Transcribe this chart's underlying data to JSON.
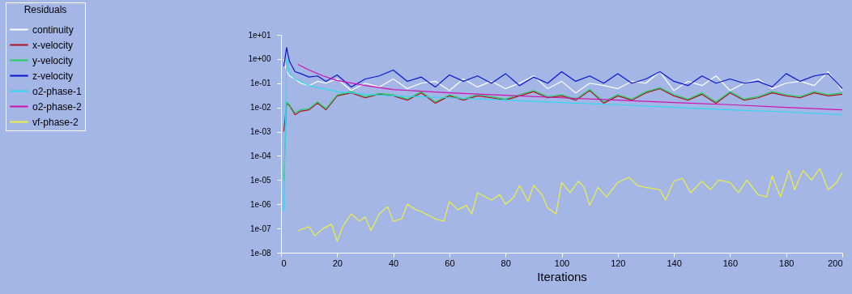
{
  "chart_data": {
    "type": "line",
    "xlabel": "Iterations",
    "legend_title": "Residuals",
    "legend": "top left",
    "log": "y",
    "grid": false,
    "marker": "none",
    "line_style": "solid",
    "xlim": [
      0,
      200
    ],
    "xticks": [
      0,
      20,
      40,
      60,
      80,
      100,
      120,
      140,
      160,
      180,
      200
    ],
    "ylim": [
      1e-08,
      10
    ],
    "yticks": [
      {
        "value": 1e-08,
        "label": "1e-08"
      },
      {
        "value": 1e-07,
        "label": "1e-07"
      },
      {
        "value": 1e-06,
        "label": "1e-06"
      },
      {
        "value": 1e-05,
        "label": "1e-05"
      },
      {
        "value": 0.0001,
        "label": "1e-04"
      },
      {
        "value": 0.001,
        "label": "1e-03"
      },
      {
        "value": 0.01,
        "label": "1e-02"
      },
      {
        "value": 0.1,
        "label": "1e-01"
      },
      {
        "value": 1,
        "label": "1e+00"
      },
      {
        "value": 10,
        "label": "1e+01"
      }
    ],
    "x": [
      1,
      2,
      3,
      5,
      7,
      10,
      13,
      16,
      20,
      25,
      30,
      35,
      40,
      45,
      50,
      55,
      60,
      65,
      70,
      75,
      80,
      85,
      90,
      95,
      100,
      105,
      110,
      115,
      120,
      125,
      130,
      135,
      140,
      145,
      150,
      155,
      160,
      165,
      170,
      175,
      180,
      185,
      190,
      195,
      200
    ],
    "series": [
      {
        "name": "continuity",
        "color": "#ffffff",
        "values": [
          1,
          0.3,
          0.2,
          0.15,
          0.1,
          0.08,
          0.12,
          0.1,
          0.15,
          0.05,
          0.1,
          0.07,
          0.15,
          0.06,
          0.1,
          0.12,
          0.05,
          0.15,
          0.07,
          0.12,
          0.06,
          0.1,
          0.2,
          0.06,
          0.12,
          0.04,
          0.1,
          0.08,
          0.06,
          0.12,
          0.1,
          0.3,
          0.05,
          0.12,
          0.08,
          0.2,
          0.05,
          0.1,
          0.15,
          0.06,
          0.1,
          0.12,
          0.08,
          0.3,
          0.05
        ]
      },
      {
        "name": "x-velocity",
        "color": "#b01020",
        "values": [
          0.001,
          0.015,
          0.012,
          0.005,
          0.007,
          0.008,
          0.015,
          0.008,
          0.03,
          0.04,
          0.025,
          0.035,
          0.03,
          0.02,
          0.04,
          0.015,
          0.03,
          0.02,
          0.03,
          0.025,
          0.02,
          0.03,
          0.045,
          0.025,
          0.03,
          0.02,
          0.05,
          0.015,
          0.03,
          0.02,
          0.04,
          0.06,
          0.03,
          0.02,
          0.035,
          0.015,
          0.04,
          0.02,
          0.025,
          0.04,
          0.03,
          0.025,
          0.04,
          0.03,
          0.035
        ]
      },
      {
        "name": "y-velocity",
        "color": "#20d060",
        "values": [
          1e-05,
          0.016,
          0.013,
          0.006,
          0.008,
          0.009,
          0.017,
          0.009,
          0.033,
          0.045,
          0.028,
          0.038,
          0.033,
          0.022,
          0.045,
          0.017,
          0.033,
          0.022,
          0.034,
          0.028,
          0.022,
          0.034,
          0.05,
          0.028,
          0.034,
          0.022,
          0.055,
          0.017,
          0.034,
          0.022,
          0.045,
          0.065,
          0.034,
          0.022,
          0.04,
          0.017,
          0.045,
          0.022,
          0.028,
          0.045,
          0.034,
          0.028,
          0.045,
          0.034,
          0.04
        ]
      },
      {
        "name": "z-velocity",
        "color": "#0a14d0",
        "values": [
          0.5,
          3,
          0.8,
          0.3,
          0.25,
          0.18,
          0.2,
          0.12,
          0.22,
          0.07,
          0.15,
          0.2,
          0.35,
          0.12,
          0.18,
          0.07,
          0.22,
          0.12,
          0.2,
          0.1,
          0.25,
          0.08,
          0.18,
          0.1,
          0.3,
          0.12,
          0.2,
          0.1,
          0.25,
          0.1,
          0.15,
          0.3,
          0.12,
          0.08,
          0.2,
          0.1,
          0.15,
          0.1,
          0.12,
          0.07,
          0.25,
          0.12,
          0.2,
          0.25,
          0.06
        ]
      },
      {
        "name": "o2-phase-1",
        "color": "#30d8f0",
        "x": [
          1,
          2,
          3,
          5,
          7,
          10,
          15,
          20,
          30,
          40,
          60,
          80,
          100,
          120,
          140,
          160,
          180,
          200
        ],
        "values": [
          5e-07,
          1,
          0.3,
          0.15,
          0.12,
          0.08,
          0.06,
          0.045,
          0.035,
          0.03,
          0.025,
          0.02,
          0.016,
          0.013,
          0.01,
          0.008,
          0.0065,
          0.005
        ]
      },
      {
        "name": "o2-phase-2",
        "color": "#d010b0",
        "x": [
          6,
          10,
          15,
          20,
          30,
          40,
          60,
          80,
          100,
          120,
          140,
          160,
          180,
          200
        ],
        "values": [
          0.6,
          0.35,
          0.2,
          0.13,
          0.08,
          0.055,
          0.04,
          0.032,
          0.025,
          0.02,
          0.016,
          0.013,
          0.01,
          0.008
        ]
      },
      {
        "name": "vf-phase-2",
        "color": "#f0f040",
        "x": [
          6,
          10,
          12,
          15,
          18,
          20,
          22,
          25,
          28,
          30,
          32,
          35,
          38,
          40,
          43,
          45,
          48,
          50,
          55,
          58,
          60,
          63,
          66,
          68,
          70,
          75,
          78,
          80,
          83,
          85,
          88,
          90,
          93,
          95,
          98,
          100,
          103,
          106,
          108,
          110,
          113,
          116,
          120,
          124,
          127,
          130,
          135,
          137,
          140,
          143,
          146,
          150,
          153,
          156,
          160,
          163,
          166,
          170,
          173,
          175,
          178,
          181,
          183,
          186,
          189,
          192,
          195,
          198,
          200
        ],
        "values": [
          8e-08,
          1.2e-07,
          5e-08,
          1e-07,
          1.5e-07,
          3e-08,
          1.2e-07,
          4e-07,
          2e-07,
          3e-07,
          8e-08,
          4e-07,
          8e-07,
          2e-07,
          2.5e-07,
          1e-06,
          6e-07,
          5e-07,
          2.5e-07,
          2e-07,
          1.3e-06,
          6e-07,
          9e-07,
          4e-07,
          3e-06,
          1.5e-06,
          2.5e-06,
          1e-06,
          2e-06,
          6e-06,
          1.3e-06,
          6e-06,
          2.5e-06,
          7e-07,
          4e-07,
          8e-06,
          3e-06,
          9e-06,
          5e-06,
          9e-07,
          5e-06,
          2e-06,
          8e-06,
          1.3e-05,
          6e-06,
          5e-06,
          4e-06,
          1.5e-06,
          9e-06,
          1.2e-05,
          3e-06,
          9e-06,
          4e-06,
          1e-05,
          8e-06,
          3e-06,
          1e-05,
          2.5e-06,
          2e-06,
          1.5e-05,
          2e-06,
          2.5e-05,
          4e-06,
          2.5e-05,
          1e-05,
          3e-05,
          4e-06,
          8e-06,
          2e-05
        ]
      }
    ]
  }
}
